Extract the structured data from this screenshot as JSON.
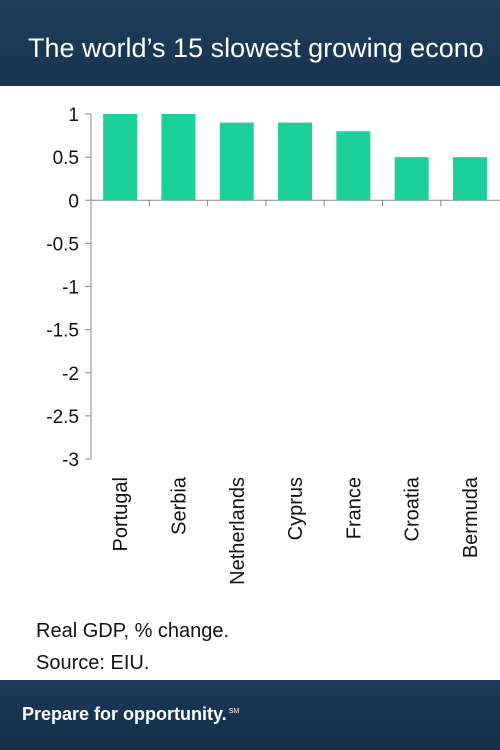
{
  "header": {
    "title": "The world’s 15 slowest growing econo"
  },
  "chart_data": {
    "type": "bar",
    "categories": [
      "Portugal",
      "Serbia",
      "Netherlands",
      "Cyprus",
      "France",
      "Croatia",
      "Bermuda"
    ],
    "values": [
      1.0,
      1.0,
      0.9,
      0.9,
      0.8,
      0.5,
      0.5
    ],
    "ylim": [
      -3,
      1
    ],
    "yticks": [
      1,
      0.5,
      0,
      -0.5,
      -1,
      -1.5,
      -2,
      -2.5,
      -3
    ],
    "ytick_labels": [
      "1",
      "0.5",
      "0",
      "-0.5",
      "-1",
      "-1.5",
      "-2",
      "-2.5",
      "-3"
    ],
    "grid": false,
    "bar_color": "#1dcf9b"
  },
  "notes": {
    "line1": "Real GDP, % change.",
    "line2": "Source: EIU."
  },
  "footer": {
    "tagline": "Prepare for opportunity.",
    "mark": "SM"
  }
}
